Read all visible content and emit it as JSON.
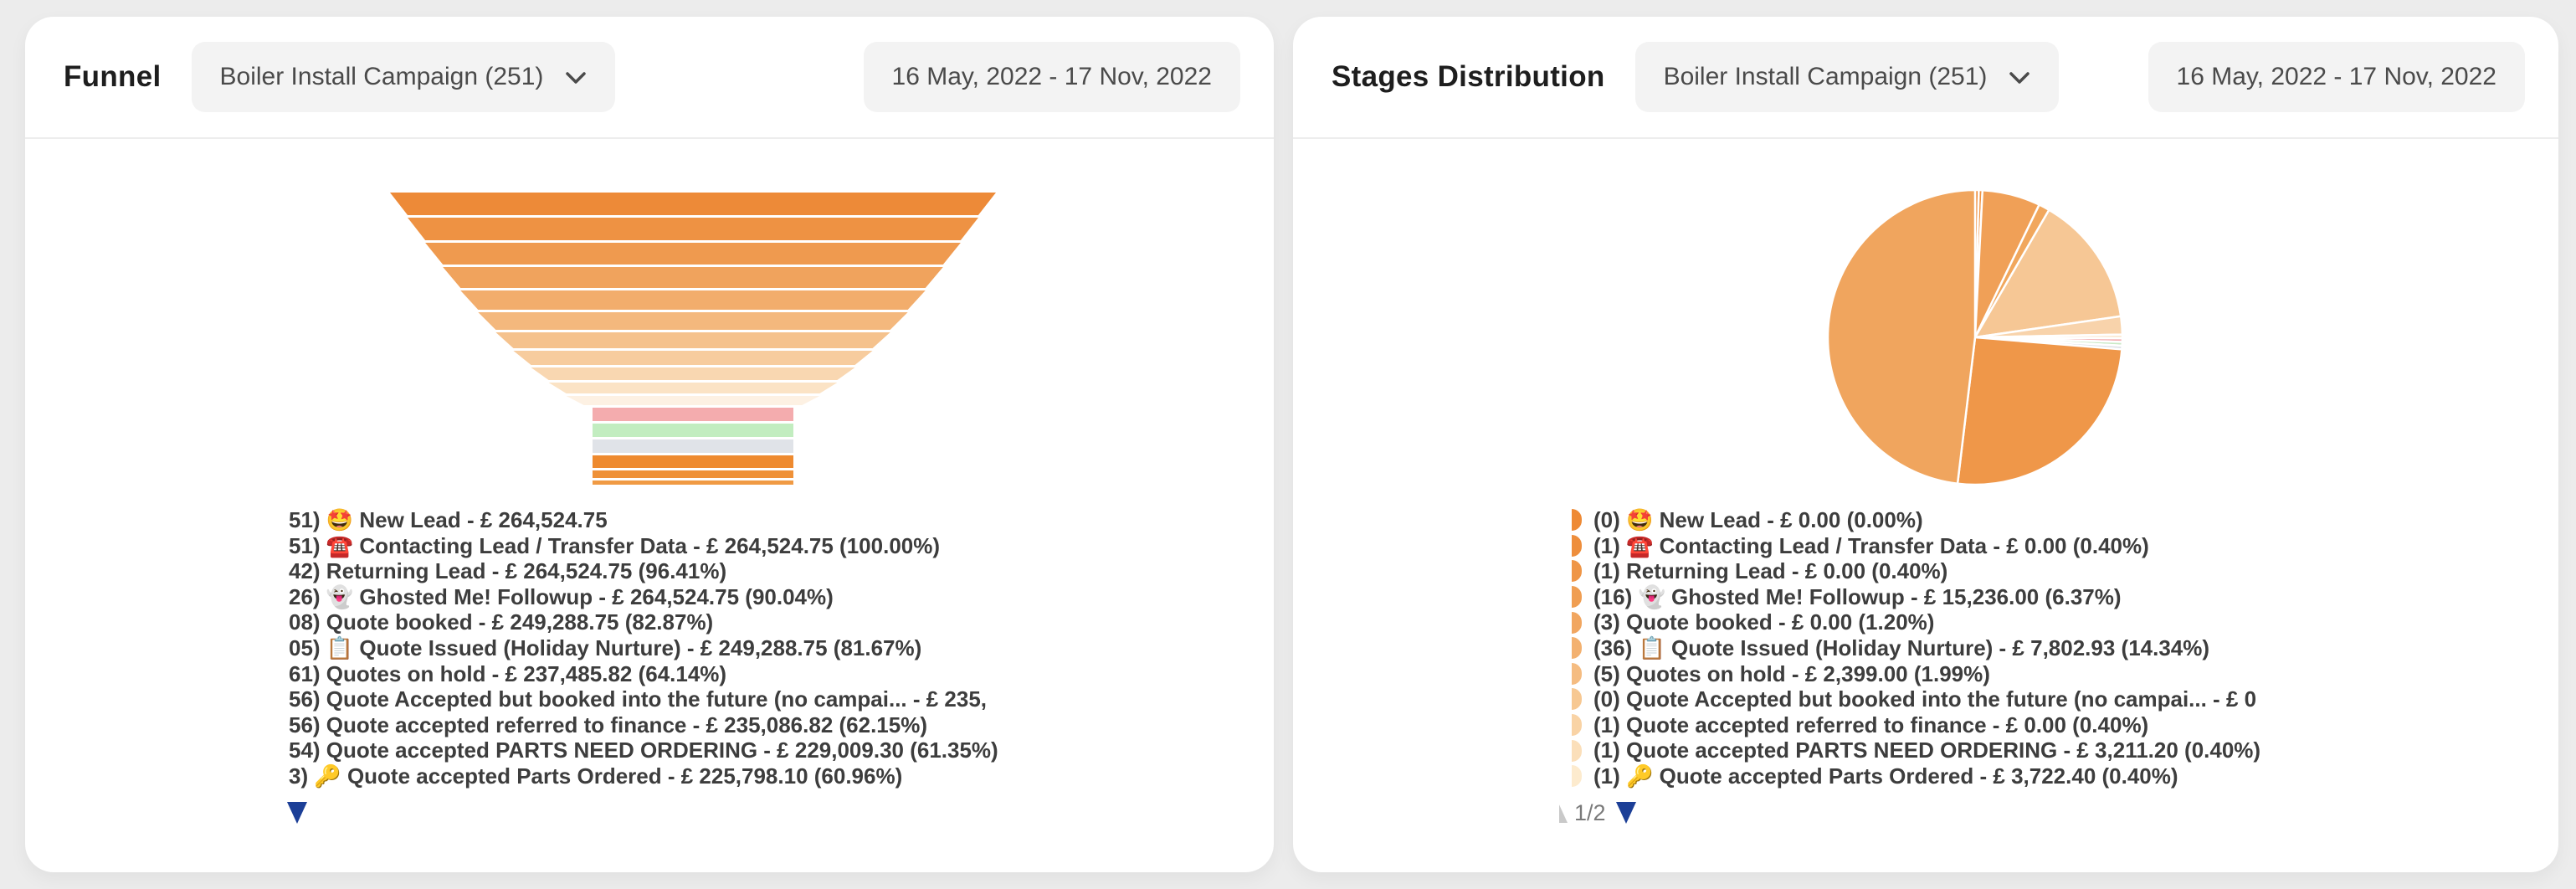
{
  "page_bg": "#ececec",
  "cards": {
    "funnel": {
      "title": "Funnel",
      "campaign_selector": {
        "label": "Boiler Install Campaign (251)"
      },
      "date_range": "16 May, 2022 - 17 Nov, 2022",
      "legend_lines": [
        "51) 🤩 New Lead - £ 264,524.75",
        "51) ☎️ Contacting Lead / Transfer Data - £ 264,524.75 (100.00%)",
        "42) Returning Lead - £ 264,524.75 (96.41%)",
        "26) 👻 Ghosted Me! Followup - £ 264,524.75 (90.04%)",
        "08) Quote booked - £ 249,288.75 (82.87%)",
        "05) 📋 Quote Issued (Holiday Nurture) - £ 249,288.75 (81.67%)",
        "61) Quotes on hold - £ 237,485.82 (64.14%)",
        "56) Quote Accepted but booked into the future (no campai... - £ 235,",
        "56) Quote accepted referred to finance - £ 235,086.82 (62.15%)",
        "54) Quote accepted PARTS NEED ORDERING - £ 229,009.30 (61.35%)",
        "3) 🔑 Quote accepted Parts Ordered - £ 225,798.10 (60.96%)"
      ]
    },
    "stages": {
      "title": "Stages Distribution",
      "campaign_selector": {
        "label": "Boiler Install Campaign (251)"
      },
      "date_range": "16 May, 2022 - 17 Nov, 2022",
      "legend_lines": [
        "(0) 🤩 New Lead - £ 0.00 (0.00%)",
        "(1) ☎️ Contacting Lead / Transfer Data - £ 0.00 (0.40%)",
        "(1) Returning Lead - £ 0.00 (0.40%)",
        "(16) 👻 Ghosted Me! Followup - £ 15,236.00 (6.37%)",
        "(3) Quote booked - £ 0.00 (1.20%)",
        "(36) 📋 Quote Issued (Holiday Nurture) - £ 7,802.93 (14.34%)",
        "(5) Quotes on hold - £ 2,399.00 (1.99%)",
        "(0) Quote Accepted but booked into the future (no campai... - £ 0",
        "(1) Quote accepted referred to finance - £ 0.00 (0.40%)",
        "(1) Quote accepted PARTS NEED ORDERING - £ 3,211.20 (0.40%)",
        "(1) 🔑 Quote accepted Parts Ordered - £ 3,722.40 (0.40%)"
      ],
      "legend_marker_colors": [
        "#ee8a35",
        "#ee8e3c",
        "#ef9647",
        "#f09e52",
        "#f1a660",
        "#f3b170",
        "#f5bc81",
        "#f7c892",
        "#f9d3a5",
        "#fbdfba",
        "#fdebce"
      ],
      "pagination": {
        "page_label": "1/2"
      }
    }
  },
  "chart_data": [
    {
      "type": "funnel",
      "title": "Funnel",
      "stages": [
        {
          "label": "🤩 New Lead",
          "value": "£ 264,524.75",
          "pct": ""
        },
        {
          "label": "☎️ Contacting Lead / Transfer Data",
          "value": "£ 264,524.75",
          "pct": "100.00%"
        },
        {
          "label": "Returning Lead",
          "value": "£ 264,524.75",
          "pct": "96.41%"
        },
        {
          "label": "👻 Ghosted Me! Followup",
          "value": "£ 264,524.75",
          "pct": "90.04%"
        },
        {
          "label": "Quote booked",
          "value": "£ 249,288.75",
          "pct": "82.87%"
        },
        {
          "label": "📋 Quote Issued (Holiday Nurture)",
          "value": "£ 249,288.75",
          "pct": "81.67%"
        },
        {
          "label": "Quotes on hold",
          "value": "£ 237,485.82",
          "pct": "64.14%"
        },
        {
          "label": "Quote Accepted but booked into the future (no campai...",
          "value": "£ 235,",
          "pct": ""
        },
        {
          "label": "Quote accepted referred to finance",
          "value": "£ 235,086.82",
          "pct": "62.15%"
        },
        {
          "label": "Quote accepted PARTS NEED ORDERING",
          "value": "£ 229,009.30",
          "pct": "61.35%"
        },
        {
          "label": "🔑 Quote accepted Parts Ordered",
          "value": "£ 225,798.10",
          "pct": "60.96%"
        }
      ],
      "segment_colors": [
        "#ed8a38",
        "#ee9243",
        "#ef9a4f",
        "#f0a35d",
        "#f2ad6c",
        "#f4b87d",
        "#f5c28d",
        "#f7cc9e",
        "#f9d7b1",
        "#fbe3c5",
        "#fdf1e3"
      ],
      "segment_heights": [
        27,
        27,
        26,
        25,
        23,
        21,
        19,
        17,
        15,
        13,
        11
      ],
      "width_pct_top": 100,
      "width_pct_bottom": 36,
      "stem": {
        "colors": [
          "#f4acae",
          "#c2edc0",
          "#e0e3e8",
          "#ee8a2f",
          "#ef9138",
          "#f09a44"
        ],
        "heights": [
          16,
          16,
          16,
          15,
          9,
          5
        ]
      }
    },
    {
      "type": "pie",
      "title": "Stages Distribution",
      "slices": [
        {
          "label": "Contacting Lead / Transfer Data",
          "pct": 0.4,
          "color": "#ee8b38"
        },
        {
          "label": "Returning Lead",
          "pct": 0.4,
          "color": "#ef9444"
        },
        {
          "label": "Ghosted Me! Followup",
          "pct": 6.37,
          "color": "#f0a057"
        },
        {
          "label": "Quote booked",
          "pct": 1.2,
          "color": "#f1a75d"
        },
        {
          "label": "Quote Issued (Holiday Nurture)",
          "pct": 14.34,
          "color": "#f6c795"
        },
        {
          "label": "Quotes on hold",
          "pct": 1.99,
          "color": "#f8d3ab"
        },
        {
          "label": "",
          "pct": 0.4,
          "color": "#fbe8d0"
        },
        {
          "label": "",
          "pct": 0.4,
          "color": "#f2aeb2"
        },
        {
          "label": "",
          "pct": 0.4,
          "color": "#c9e9c5"
        },
        {
          "label": "",
          "pct": 0.4,
          "color": "#dde1e6"
        },
        {
          "label": "",
          "pct": 25.6,
          "color": "#ef9749"
        },
        {
          "label": "",
          "pct": 48.1,
          "color": "#f0a55e"
        }
      ],
      "legend_position": "bottom-left"
    }
  ]
}
